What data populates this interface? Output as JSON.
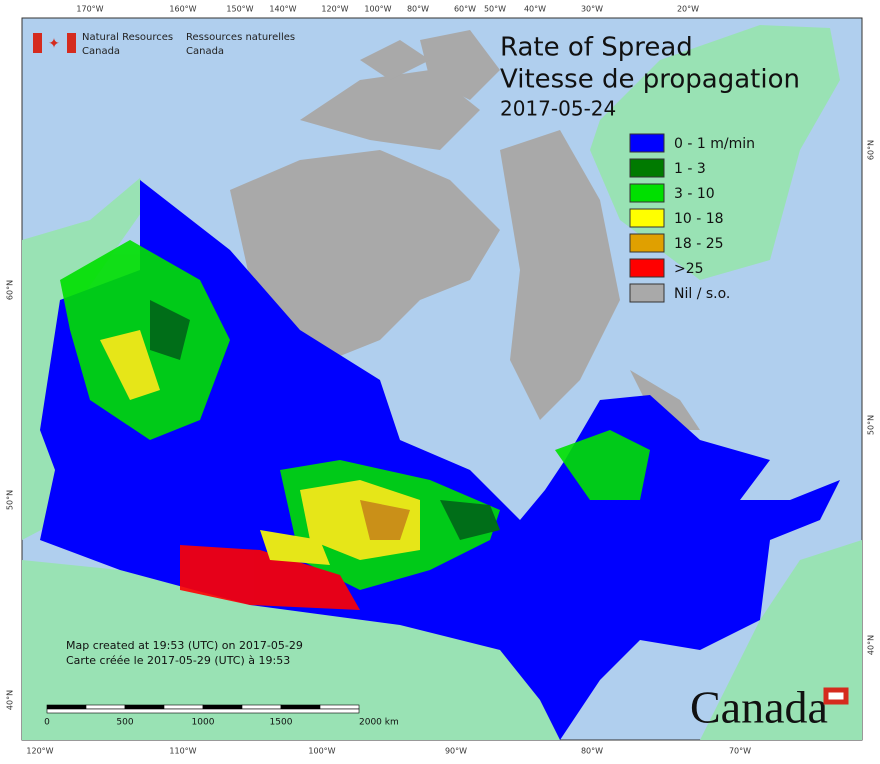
{
  "header": {
    "agency_en": [
      "Natural Resources",
      "Canada"
    ],
    "agency_fr": [
      "Ressources naturelles",
      "Canada"
    ],
    "title": "Rate of Spread",
    "title_fr": "Vitesse de propagation",
    "date": "2017-05-24"
  },
  "legend": [
    {
      "label": "0 - 1 m/min",
      "color": "#0000ff"
    },
    {
      "label": "1 - 3",
      "color": "#007a00"
    },
    {
      "label": "3 - 10",
      "color": "#00e000"
    },
    {
      "label": "10 - 18",
      "color": "#ffff00"
    },
    {
      "label": "18 - 25",
      "color": "#e0a000"
    },
    {
      "label": ">25",
      "color": "#ff0000"
    },
    {
      "label": "Nil / s.o.",
      "color": "#a9a9a9"
    }
  ],
  "graticule": {
    "top": [
      "170°W",
      "160°W",
      "150°W",
      "140°W",
      "120°W",
      "100°W",
      "80°W",
      "60°W",
      "50°W",
      "40°W",
      "30°W",
      "20°W"
    ],
    "bottom": [
      "120°W",
      "110°W",
      "100°W",
      "90°W",
      "80°W",
      "70°W"
    ],
    "left": [
      "60°N",
      "50°N",
      "40°N"
    ],
    "right": [
      "60°N",
      "50°N",
      "40°N"
    ]
  },
  "notes": [
    "Map created at 19:53 (UTC) on 2017-05-29",
    "Carte créée le 2017-05-29 (UTC) à 19:53"
  ],
  "scale_bar": [
    "0",
    "500",
    "1000",
    "1500",
    "2000 km"
  ],
  "wordmark": "Canada"
}
